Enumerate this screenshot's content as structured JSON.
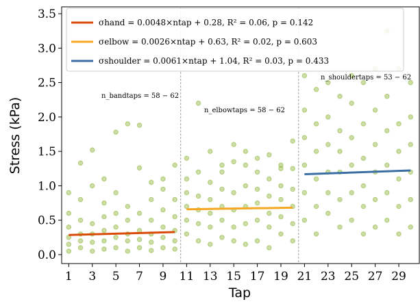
{
  "chart_data": {
    "type": "scatter",
    "x_label": "Tap",
    "y_label": "Stress (kPa)",
    "xlim": [
      0.4,
      30.8
    ],
    "ylim": [
      -0.13,
      3.6
    ],
    "xticks": [
      1,
      3,
      5,
      7,
      9,
      11,
      13,
      15,
      17,
      19,
      21,
      23,
      25,
      27,
      29
    ],
    "yticks": [
      {
        "value": 0,
        "label": "0.0"
      },
      0.5,
      {
        "value": 1,
        "label": "1.0"
      },
      1.5,
      {
        "value": 2,
        "label": "2.0"
      },
      2.5,
      {
        "value": 3,
        "label": "3.0"
      },
      3.5
    ],
    "dividers": [
      10.5,
      20.5
    ],
    "annotations": [
      "n_bandtaps = 58 − 62",
      "n_elbowtaps = 58 − 62",
      "n_shouldertaps = 53 − 62"
    ],
    "points": {
      "color": "#8db53a",
      "x": [
        1,
        1,
        1,
        1,
        1,
        1,
        2,
        2,
        2,
        2,
        2,
        2,
        3,
        3,
        3,
        3,
        3,
        3,
        4,
        4,
        4,
        4,
        4,
        4,
        5,
        5,
        5,
        5,
        5,
        5,
        6,
        6,
        6,
        6,
        6,
        6,
        7,
        7,
        7,
        7,
        7,
        7,
        8,
        8,
        8,
        8,
        8,
        8,
        9,
        9,
        9,
        9,
        9,
        9,
        10,
        10,
        10,
        10,
        10,
        10,
        11,
        11,
        11,
        11,
        11,
        11,
        12,
        12,
        12,
        12,
        12,
        12,
        13,
        13,
        13,
        13,
        13,
        13,
        14,
        14,
        14,
        14,
        14,
        14,
        15,
        15,
        15,
        15,
        15,
        15,
        16,
        16,
        16,
        16,
        16,
        16,
        17,
        17,
        17,
        17,
        17,
        17,
        18,
        18,
        18,
        18,
        18,
        18,
        19,
        19,
        19,
        19,
        19,
        19,
        20,
        20,
        20,
        20,
        20,
        20,
        21,
        21,
        21,
        21,
        21,
        21,
        22,
        22,
        22,
        22,
        22,
        22,
        23,
        23,
        23,
        23,
        23,
        23,
        24,
        24,
        24,
        24,
        24,
        24,
        25,
        25,
        25,
        25,
        25,
        25,
        26,
        26,
        26,
        26,
        26,
        26,
        27,
        27,
        27,
        27,
        27,
        27,
        28,
        28,
        28,
        28,
        28,
        28,
        29,
        29,
        29,
        29,
        29,
        29,
        30,
        30,
        30,
        30,
        30,
        30
      ],
      "values": [
        0.05,
        0.15,
        0.25,
        0.4,
        0.6,
        0.9,
        0.1,
        0.2,
        0.3,
        0.5,
        0.8,
        1.33,
        0.05,
        0.18,
        0.3,
        0.45,
        1.0,
        1.52,
        0.08,
        0.2,
        0.35,
        0.55,
        0.75,
        1.1,
        0.1,
        0.25,
        0.4,
        0.6,
        0.9,
        1.78,
        0.05,
        0.2,
        0.3,
        0.5,
        0.7,
        1.9,
        0.1,
        0.22,
        0.35,
        0.6,
        1.26,
        1.88,
        0.06,
        0.18,
        0.3,
        0.5,
        0.8,
        1.05,
        0.1,
        0.25,
        0.4,
        0.65,
        0.95,
        1.1,
        0.08,
        0.2,
        0.35,
        0.55,
        0.8,
        1.3,
        0.3,
        0.5,
        0.7,
        0.9,
        1.1,
        1.4,
        0.2,
        0.45,
        0.65,
        0.85,
        1.2,
        2.2,
        0.15,
        0.4,
        0.6,
        0.8,
        1.05,
        1.5,
        0.25,
        0.5,
        0.7,
        0.95,
        1.2,
        1.3,
        0.2,
        0.4,
        0.65,
        0.9,
        1.35,
        1.6,
        0.15,
        0.45,
        0.7,
        1.0,
        1.3,
        1.5,
        0.2,
        0.5,
        0.75,
        0.95,
        1.2,
        1.4,
        0.1,
        0.4,
        0.6,
        0.85,
        1.1,
        1.45,
        0.3,
        0.55,
        0.8,
        1.0,
        1.25,
        1.3,
        0.2,
        0.45,
        0.7,
        0.95,
        1.25,
        1.65,
        0.5,
        0.9,
        1.3,
        1.7,
        2.1,
        2.6,
        0.3,
        0.7,
        1.1,
        1.5,
        1.9,
        2.4,
        0.6,
        0.9,
        1.2,
        1.6,
        2.0,
        2.5,
        0.4,
        0.8,
        1.2,
        1.5,
        1.8,
        2.3,
        0.5,
        0.9,
        1.3,
        1.7,
        2.2,
        2.6,
        0.3,
        0.7,
        1.0,
        1.4,
        1.9,
        2.5,
        0.4,
        0.8,
        1.2,
        1.6,
        2.1,
        2.7,
        0.5,
        0.9,
        1.3,
        1.8,
        2.3,
        3.25,
        0.3,
        0.7,
        1.1,
        1.5,
        1.9,
        2.7,
        0.4,
        0.8,
        1.2,
        1.6,
        2.0,
        2.5
      ]
    },
    "series": [
      {
        "name": "σhand = 0.0048×ntap + 0.28, R² = 0.06, p = 0.142",
        "color": "#d84a05",
        "x": [
          1,
          10
        ],
        "values": [
          0.2848,
          0.328
        ]
      },
      {
        "name": "σelbow = 0.0026×ntap + 0.63, R² = 0.02, p = 0.603",
        "color": "#f5a623",
        "x": [
          11,
          20
        ],
        "values": [
          0.6586,
          0.682
        ]
      },
      {
        "name": "σshoulder = 0.0061×ntap + 1.04, R² = 0.03, p = 0.433",
        "color": "#3a6ea5",
        "x": [
          21,
          30
        ],
        "values": [
          1.1681,
          1.223
        ]
      }
    ]
  }
}
